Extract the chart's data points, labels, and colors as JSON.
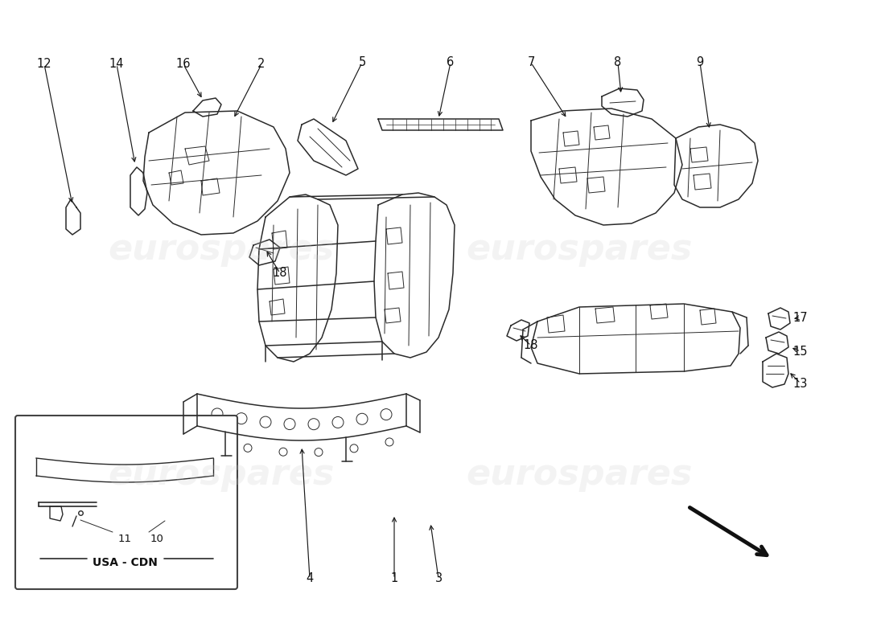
{
  "background_color": "#ffffff",
  "watermark_text": "eurospares",
  "watermark_color": "#cccccc",
  "watermark_alpha": 0.22,
  "watermark_fontsize": 32,
  "line_color": "#2a2a2a",
  "text_color": "#111111",
  "label_fontsize": 10.5,
  "arrow_color": "#1a1a1a",
  "lw_main": 1.1,
  "lw_detail": 0.7
}
